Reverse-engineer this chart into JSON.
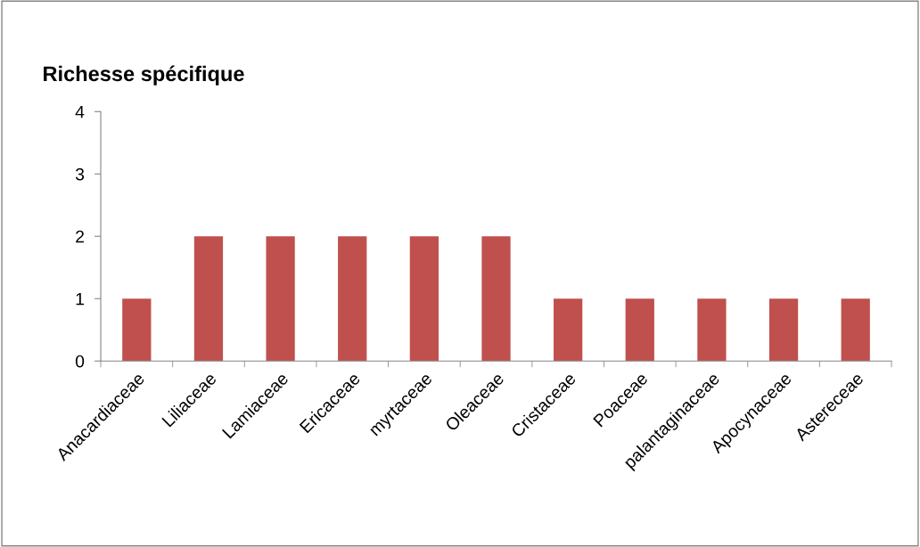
{
  "chart_data": {
    "type": "bar",
    "title": "Richesse spécifique",
    "categories": [
      "Anacardiaceae",
      "Liliaceae",
      "Lamiaceae",
      "Ericaceae",
      "myrtaceae",
      "Oleaceae",
      "Cristaceae",
      "Poaceae",
      "palantaginaceae",
      "Apocynaceae",
      "Astereceae"
    ],
    "values": [
      1,
      2,
      2,
      2,
      2,
      2,
      1,
      1,
      1,
      1,
      1
    ],
    "color": "#c0504d",
    "ylim": [
      0,
      4
    ],
    "yticks": [
      0,
      1,
      2,
      3,
      4
    ],
    "grid": false,
    "legend": false
  }
}
